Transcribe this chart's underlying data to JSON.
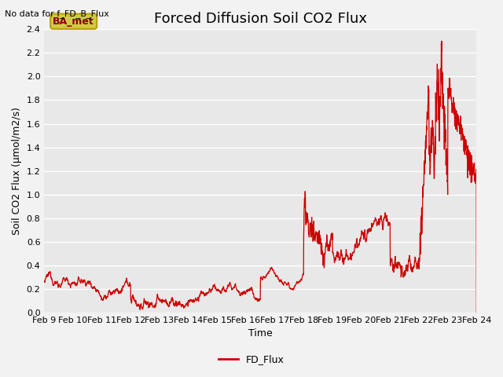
{
  "title": "Forced Diffusion Soil CO2 Flux",
  "xlabel": "Time",
  "ylabel": "Soil CO2 Flux (μmol/m2/s)",
  "top_left_text": "No data for f_FD_B_Flux",
  "legend_label": "FD_Flux",
  "legend_box_color": "#d4c84a",
  "legend_box_text_color": "#8b0000",
  "legend_box_edge_color": "#b8a000",
  "line_color": "#cc0000",
  "bg_color": "#e8e8e8",
  "fig_bg_color": "#f2f2f2",
  "ylim": [
    0.0,
    2.4
  ],
  "yticks": [
    0.0,
    0.2,
    0.4,
    0.6,
    0.8,
    1.0,
    1.2,
    1.4,
    1.6,
    1.8,
    2.0,
    2.2,
    2.4
  ],
  "xtick_labels": [
    "Feb 9",
    "Feb 10",
    "Feb 11",
    "Feb 12",
    "Feb 13",
    "Feb 14",
    "Feb 15",
    "Feb 16",
    "Feb 17",
    "Feb 18",
    "Feb 19",
    "Feb 20",
    "Feb 21",
    "Feb 22",
    "Feb 23",
    "Feb 24"
  ],
  "figsize": [
    6.4,
    4.8
  ],
  "dpi": 100,
  "title_fontsize": 13,
  "axis_label_fontsize": 9,
  "tick_label_fontsize": 8,
  "linewidth": 0.9
}
